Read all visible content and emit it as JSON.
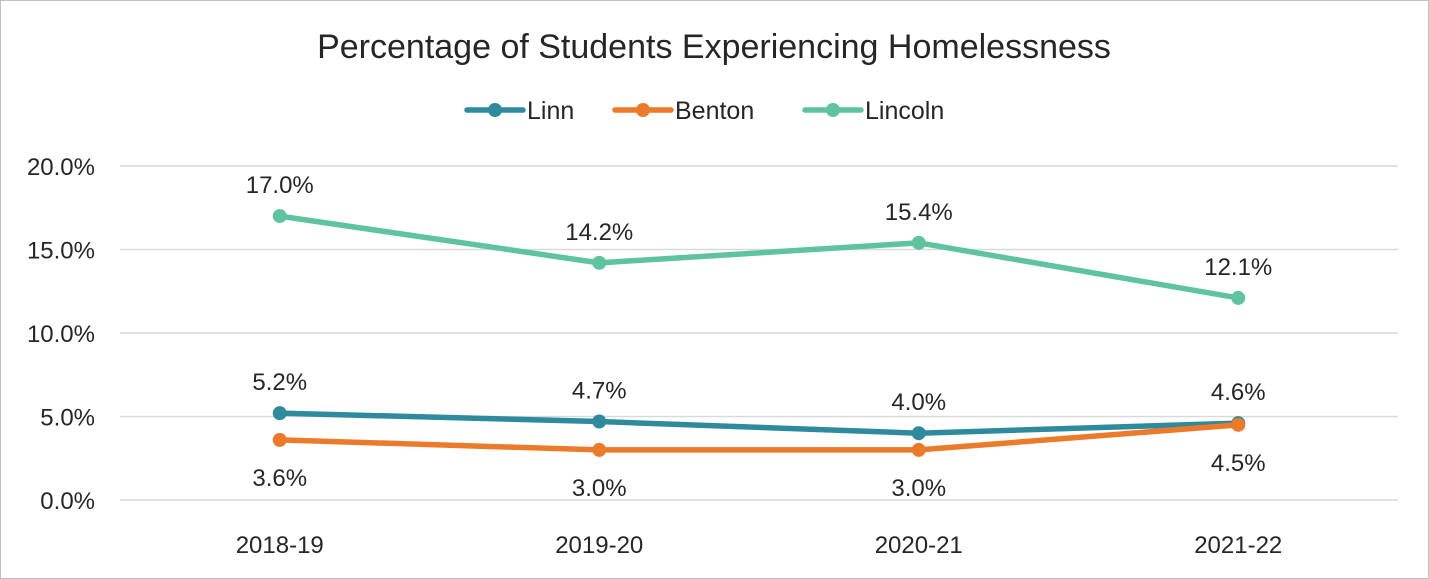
{
  "chart_data": {
    "type": "line",
    "title": "Percentage of Students Experiencing Homelessness",
    "categories": [
      "2018-19",
      "2019-20",
      "2020-21",
      "2021-22"
    ],
    "ylim": [
      0,
      20
    ],
    "yticks": [
      0,
      5,
      10,
      15,
      20
    ],
    "ytick_labels": [
      "0.0%",
      "5.0%",
      "10.0%",
      "15.0%",
      "20.0%"
    ],
    "grid": true,
    "legend_position": "top-center",
    "xlabel": "",
    "ylabel": "",
    "series": [
      {
        "name": "Linn",
        "color": "#2e8a9c",
        "values": [
          5.2,
          4.7,
          4.0,
          4.6
        ],
        "labels": [
          "5.2%",
          "4.7%",
          "4.0%",
          "4.6%"
        ],
        "label_side": "above"
      },
      {
        "name": "Benton",
        "color": "#ec7a2b",
        "values": [
          3.6,
          3.0,
          3.0,
          4.5
        ],
        "labels": [
          "3.6%",
          "3.0%",
          "3.0%",
          "4.5%"
        ],
        "label_side": "below"
      },
      {
        "name": "Lincoln",
        "color": "#5fc3a0",
        "values": [
          17.0,
          14.2,
          15.4,
          12.1
        ],
        "labels": [
          "17.0%",
          "14.2%",
          "15.4%",
          "12.1%"
        ],
        "label_side": "above"
      }
    ]
  }
}
